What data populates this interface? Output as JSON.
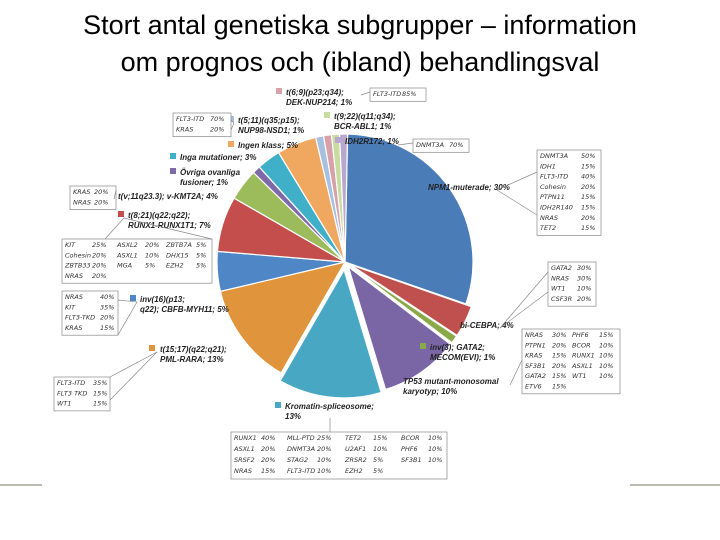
{
  "page": {
    "title_line1": "Stort antal genetiska subgrupper – information",
    "title_line2": "om prognos och (ibland) behandlingsval"
  },
  "chart_data": {
    "type": "pie",
    "unit": "%",
    "slices": [
      {
        "label": "NPM1-muterade; 30%",
        "value": 30,
        "color": "#4a7cb8"
      },
      {
        "label": "bi-CEBPA; 4%",
        "value": 4,
        "color": "#c0504d"
      },
      {
        "label": "inv(3); GATA2; MECOM(EVI); 1%",
        "value": 1,
        "color": "#8aaa4a"
      },
      {
        "label": "TP53 mutant-monosomal karyotyp; 10%",
        "value": 10,
        "color": "#7a66a4"
      },
      {
        "label": "Kromatin-spliceosome; 13%",
        "value": 13,
        "color": "#48a8c4"
      },
      {
        "label": "t(15;17)(q22;q21); PML-RARA; 13%",
        "value": 13,
        "color": "#e0943c"
      },
      {
        "label": "inv(16)(p13; q22); CBFB-MYH11; 5%",
        "value": 5,
        "color": "#4e86c6"
      },
      {
        "label": "t(8;21)(q22;q22); RUNX1-RUNX1T1; 7%",
        "value": 7,
        "color": "#c44e4c"
      },
      {
        "label": "t(v;11q23.3); v-KMT2A; 4%",
        "value": 4,
        "color": "#9cbc5c"
      },
      {
        "label": "Övriga ovanliga fusioner; 1%",
        "value": 1,
        "color": "#7e6aa8"
      },
      {
        "label": "Inga mutationer; 3%",
        "value": 3,
        "color": "#3fb0c8"
      },
      {
        "label": "Ingen klass; 5%",
        "value": 5,
        "color": "#f0a860"
      },
      {
        "label": "t(5;11)(q35;p15); NUP98-NSD1; 1%",
        "value": 1,
        "color": "#a8c0e0"
      },
      {
        "label": "t(6;9)(p23;q34); DEK-NUP214; 1%",
        "value": 1,
        "color": "#d8a0a8"
      },
      {
        "label": "t(9;22)(q11;q34); BCR-ABL1; 1%",
        "value": 1,
        "color": "#c8dca0"
      },
      {
        "label": "IDH2R172; 1%",
        "value": 1,
        "color": "#b8a8d0"
      }
    ],
    "annotations": [
      {
        "id": "npm1",
        "rows": [
          [
            "DNMT3A",
            "50%"
          ],
          [
            "IDH1",
            "15%"
          ],
          [
            "FLT3-ITD",
            "40%"
          ],
          [
            "Cohesin",
            "20%"
          ],
          [
            "PTPN11",
            "15%"
          ],
          [
            "IDH2R140",
            "15%"
          ],
          [
            "NRAS",
            "20%"
          ],
          [
            "TET2",
            "15%"
          ]
        ]
      },
      {
        "id": "cebpa",
        "rows": [
          [
            "GATA2",
            "30%"
          ],
          [
            "NRAS",
            "30%"
          ],
          [
            "WT1",
            "10%"
          ],
          [
            "CSF3R",
            "20%"
          ]
        ]
      },
      {
        "id": "tp53",
        "rows": [
          [
            "NRAS",
            "30%",
            "PHF6",
            "15%"
          ],
          [
            "PTPN1",
            "20%",
            "BCOR",
            "10%"
          ],
          [
            "KRAS",
            "15%",
            "RUNX1",
            "10%"
          ],
          [
            "SF3B1",
            "20%",
            "ASXL1",
            "10%"
          ],
          [
            "GATA2",
            "15%",
            "WT1",
            "10%"
          ],
          [
            "ETV6",
            "15%",
            "",
            ""
          ]
        ]
      },
      {
        "id": "kromatin",
        "rows": [
          [
            "RUNX1",
            "40%",
            "MLL-PTD",
            "25%",
            "TET2",
            "15%",
            "BCOR",
            "10%"
          ],
          [
            "ASXL1",
            "20%",
            "DNMT3A",
            "20%",
            "U2AF1",
            "10%",
            "PHF6",
            "10%"
          ],
          [
            "SRSF2",
            "20%",
            "STAG2",
            "10%",
            "ZRSR2",
            "5%",
            "SF3B1",
            "10%"
          ],
          [
            "NRAS",
            "15%",
            "FLT3-ITD",
            "10%",
            "EZH2",
            "5%",
            "",
            ""
          ]
        ]
      },
      {
        "id": "pml",
        "rows": [
          [
            "FLT3-ITD",
            "35%"
          ],
          [
            "FLT3 TKD",
            "15%"
          ],
          [
            "WT1",
            "15%"
          ]
        ]
      },
      {
        "id": "cbfb",
        "rows": [
          [
            "NRAS",
            "40%"
          ],
          [
            "KIT",
            "35%"
          ],
          [
            "FLT3-TKD",
            "20%"
          ],
          [
            "KRAS",
            "15%"
          ]
        ]
      },
      {
        "id": "runx1",
        "rows": [
          [
            "KIT",
            "25%",
            "ASXL2",
            "20%",
            "ZBTB7A",
            "5%"
          ],
          [
            "Cohesin",
            "20%",
            "ASXL1",
            "10%",
            "DHX15",
            "5%"
          ],
          [
            "ZBTB33",
            "20%",
            "MGA",
            "5%",
            "EZH2",
            "5%"
          ],
          [
            "NRAS",
            "20%",
            "",
            "",
            "",
            ""
          ]
        ]
      },
      {
        "id": "kmt2a",
        "rows": [
          [
            "KRAS",
            "20%"
          ],
          [
            "NRAS",
            "20%"
          ]
        ]
      },
      {
        "id": "nup98",
        "rows": [
          [
            "FLT3-ITD",
            "70%"
          ],
          [
            "KRAS",
            "20%"
          ]
        ]
      },
      {
        "id": "dek",
        "rows": [
          [
            "FLT3-ITD",
            "85%"
          ]
        ]
      },
      {
        "id": "idh2",
        "rows": [
          [
            "DNMT3A",
            "70%"
          ]
        ]
      }
    ]
  }
}
